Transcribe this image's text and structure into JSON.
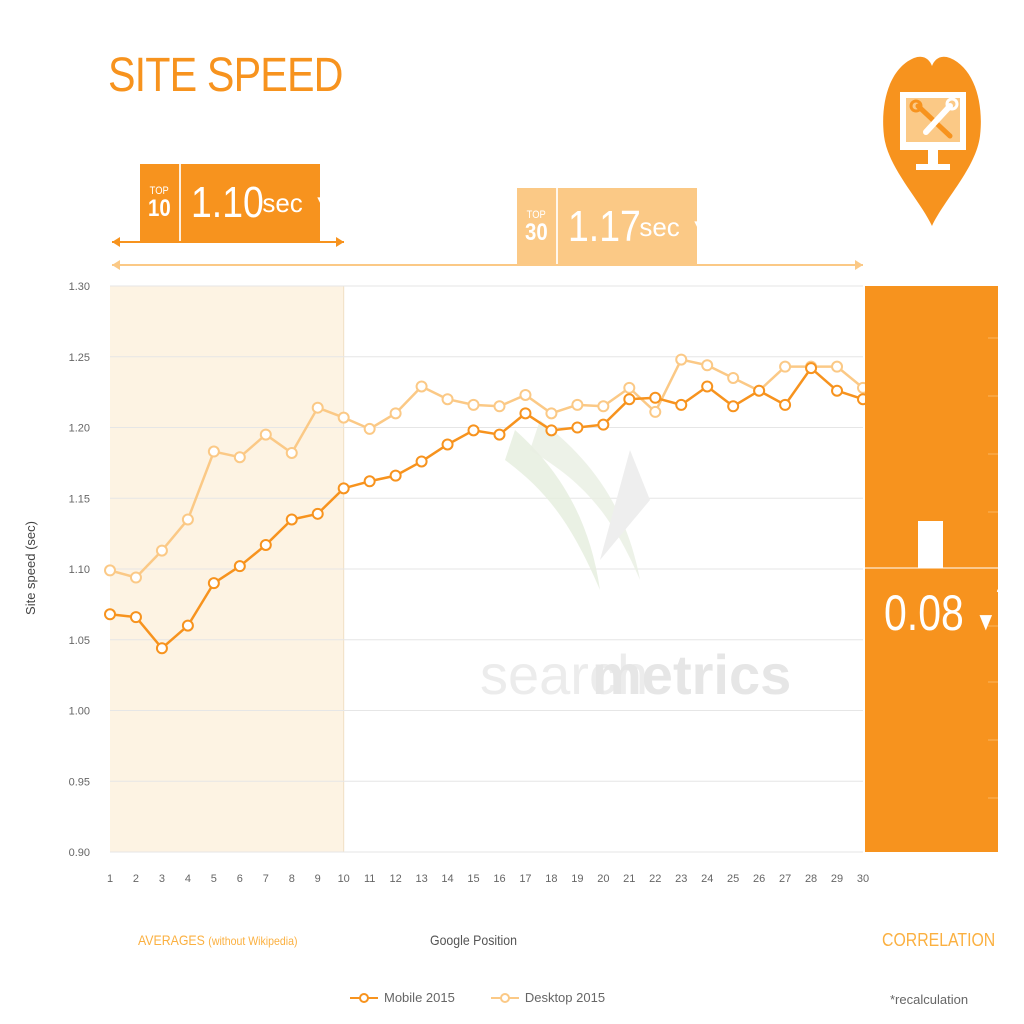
{
  "title": "SITE SPEED",
  "badges": {
    "top10": {
      "rank_label": "TOP",
      "rank_number": "10",
      "value": "1.10",
      "unit": "sec",
      "arrow": "▼"
    },
    "top30": {
      "rank_label": "TOP",
      "rank_number": "30",
      "value": "1.17",
      "unit": "sec",
      "arrow": "▼"
    }
  },
  "sections": {
    "averages": "AVERAGES",
    "averages_note": "(without Wikipedia)",
    "x_axis_title": "Google Position",
    "correlation": "CORRELATION"
  },
  "correlation": {
    "value": "0.08",
    "arrow": "▼",
    "asterisk": "*"
  },
  "footnote": "*recalculation",
  "watermark": {
    "light": "search",
    "bold": "metrics"
  },
  "icon": "heart-monitor-tools-icon",
  "colors": {
    "mobile": "#f7931e",
    "desktop": "#fbc986",
    "highlight": "#fdf3e3",
    "accent": "#f7931e"
  },
  "chart_data": {
    "type": "line",
    "ylabel": "Site speed (sec)",
    "xlabel": "Google Position",
    "ylim": [
      0.9,
      1.3
    ],
    "yticks": [
      "0.90",
      "0.95",
      "1.00",
      "1.05",
      "1.10",
      "1.15",
      "1.20",
      "1.25",
      "1.30"
    ],
    "x": [
      1,
      2,
      3,
      4,
      5,
      6,
      7,
      8,
      9,
      10,
      11,
      12,
      13,
      14,
      15,
      16,
      17,
      18,
      19,
      20,
      21,
      22,
      23,
      24,
      25,
      26,
      27,
      28,
      29,
      30
    ],
    "highlight_positions": [
      1,
      10
    ],
    "series": [
      {
        "name": "Mobile 2015",
        "values": [
          1.068,
          1.066,
          1.044,
          1.06,
          1.09,
          1.102,
          1.117,
          1.135,
          1.139,
          1.157,
          1.162,
          1.166,
          1.176,
          1.188,
          1.198,
          1.195,
          1.21,
          1.198,
          1.2,
          1.202,
          1.22,
          1.221,
          1.216,
          1.229,
          1.215,
          1.226,
          1.216,
          1.242,
          1.226,
          1.22
        ]
      },
      {
        "name": "Desktop 2015",
        "values": [
          1.099,
          1.094,
          1.113,
          1.135,
          1.183,
          1.179,
          1.195,
          1.182,
          1.214,
          1.207,
          1.199,
          1.21,
          1.229,
          1.22,
          1.216,
          1.215,
          1.223,
          1.21,
          1.216,
          1.215,
          1.228,
          1.211,
          1.248,
          1.244,
          1.235,
          1.226,
          1.243,
          1.243,
          1.243,
          1.228
        ]
      }
    ],
    "legend_position": "bottom-center",
    "grid": true
  }
}
